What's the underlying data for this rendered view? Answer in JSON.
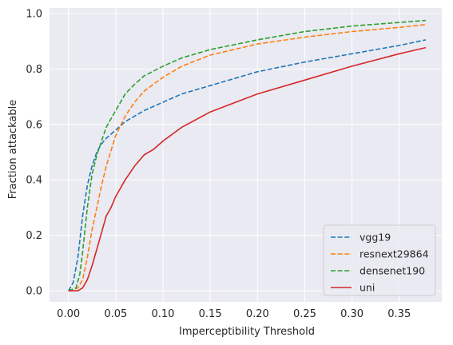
{
  "chart_data": {
    "type": "line",
    "xlabel": "Imperceptibility Threshold",
    "ylabel": "Fraction attackable",
    "xlim": [
      -0.02,
      0.395
    ],
    "ylim": [
      -0.04,
      1.02
    ],
    "xticks": [
      0.0,
      0.05,
      0.1,
      0.15,
      0.2,
      0.25,
      0.3,
      0.35
    ],
    "xtick_labels": [
      "0.00",
      "0.05",
      "0.10",
      "0.15",
      "0.20",
      "0.25",
      "0.30",
      "0.35"
    ],
    "yticks": [
      0.0,
      0.2,
      0.4,
      0.6,
      0.8,
      1.0
    ],
    "ytick_labels": [
      "0.0",
      "0.2",
      "0.4",
      "0.6",
      "0.8",
      "1.0"
    ],
    "grid": true,
    "legend_position": "lower-right",
    "series": [
      {
        "name": "vgg19",
        "color": "#1f77b4",
        "dash": "dashed",
        "x": [
          0.0,
          0.005,
          0.01,
          0.015,
          0.02,
          0.025,
          0.03,
          0.035,
          0.04,
          0.05,
          0.06,
          0.07,
          0.08,
          0.1,
          0.12,
          0.15,
          0.2,
          0.25,
          0.3,
          0.35,
          0.378
        ],
        "y": [
          0.0,
          0.03,
          0.12,
          0.27,
          0.38,
          0.45,
          0.5,
          0.53,
          0.55,
          0.58,
          0.61,
          0.63,
          0.65,
          0.68,
          0.71,
          0.74,
          0.79,
          0.825,
          0.855,
          0.885,
          0.905
        ]
      },
      {
        "name": "resnext29864",
        "color": "#ff7f0e",
        "dash": "dashed",
        "x": [
          0.0,
          0.01,
          0.015,
          0.02,
          0.025,
          0.03,
          0.035,
          0.04,
          0.05,
          0.06,
          0.07,
          0.08,
          0.1,
          0.12,
          0.15,
          0.2,
          0.25,
          0.3,
          0.35,
          0.378
        ],
        "y": [
          0.0,
          0.01,
          0.04,
          0.12,
          0.22,
          0.3,
          0.38,
          0.45,
          0.56,
          0.63,
          0.68,
          0.72,
          0.77,
          0.81,
          0.85,
          0.89,
          0.915,
          0.935,
          0.95,
          0.96
        ]
      },
      {
        "name": "densenet190",
        "color": "#2ca02c",
        "dash": "dashed",
        "x": [
          0.0,
          0.008,
          0.012,
          0.015,
          0.02,
          0.025,
          0.03,
          0.035,
          0.04,
          0.05,
          0.06,
          0.07,
          0.08,
          0.1,
          0.12,
          0.15,
          0.2,
          0.25,
          0.3,
          0.35,
          0.378
        ],
        "y": [
          0.0,
          0.01,
          0.06,
          0.14,
          0.3,
          0.42,
          0.49,
          0.54,
          0.59,
          0.65,
          0.71,
          0.745,
          0.775,
          0.81,
          0.84,
          0.87,
          0.905,
          0.935,
          0.955,
          0.968,
          0.975
        ]
      },
      {
        "name": "uni",
        "color": "#d62728",
        "dash": "solid",
        "x": [
          0.0,
          0.01,
          0.015,
          0.02,
          0.025,
          0.03,
          0.035,
          0.04,
          0.045,
          0.05,
          0.06,
          0.07,
          0.08,
          0.09,
          0.1,
          0.12,
          0.15,
          0.2,
          0.25,
          0.3,
          0.35,
          0.378
        ],
        "y": [
          0.0,
          0.0,
          0.01,
          0.04,
          0.09,
          0.15,
          0.21,
          0.27,
          0.3,
          0.34,
          0.4,
          0.45,
          0.49,
          0.51,
          0.54,
          0.59,
          0.645,
          0.71,
          0.76,
          0.81,
          0.855,
          0.877
        ]
      }
    ]
  }
}
